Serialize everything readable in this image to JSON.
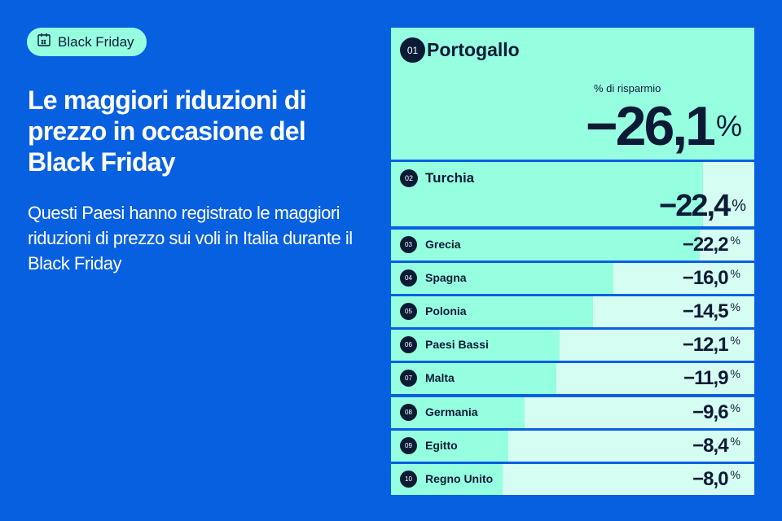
{
  "badge": {
    "label": "Black Friday",
    "icon": "calendar-icon"
  },
  "title": "Le maggiori riduzioni di prezzo in occasione del Black Friday",
  "subtitle": "Questi Paesi hanno registrato le maggiori riduzioni di prezzo sui voli in Italia durante il Black Friday",
  "colors": {
    "background": "#0760e0",
    "bar": "#96ffe0",
    "track": "#d6fdf1",
    "text": "#0b1b36"
  },
  "chart_data": {
    "type": "bar",
    "orientation": "horizontal",
    "value_label": "% di risparmio",
    "categories": [
      "Portogallo",
      "Turchia",
      "Grecia",
      "Spagna",
      "Polonia",
      "Paesi Bassi",
      "Malta",
      "Germania",
      "Egitto",
      "Regno Unito"
    ],
    "ranks": [
      "01",
      "02",
      "03",
      "04",
      "05",
      "06",
      "07",
      "08",
      "09",
      "10"
    ],
    "values": [
      -26.1,
      -22.4,
      -22.2,
      -16.0,
      -14.5,
      -12.1,
      -11.9,
      -9.6,
      -8.4,
      -8.0
    ],
    "labels": [
      "−26,1",
      "−22,4",
      "−22,2",
      "−16,0",
      "−14,5",
      "−12,1",
      "−11,9",
      "−9,6",
      "−8,4",
      "−8,0"
    ],
    "unit": "%"
  }
}
